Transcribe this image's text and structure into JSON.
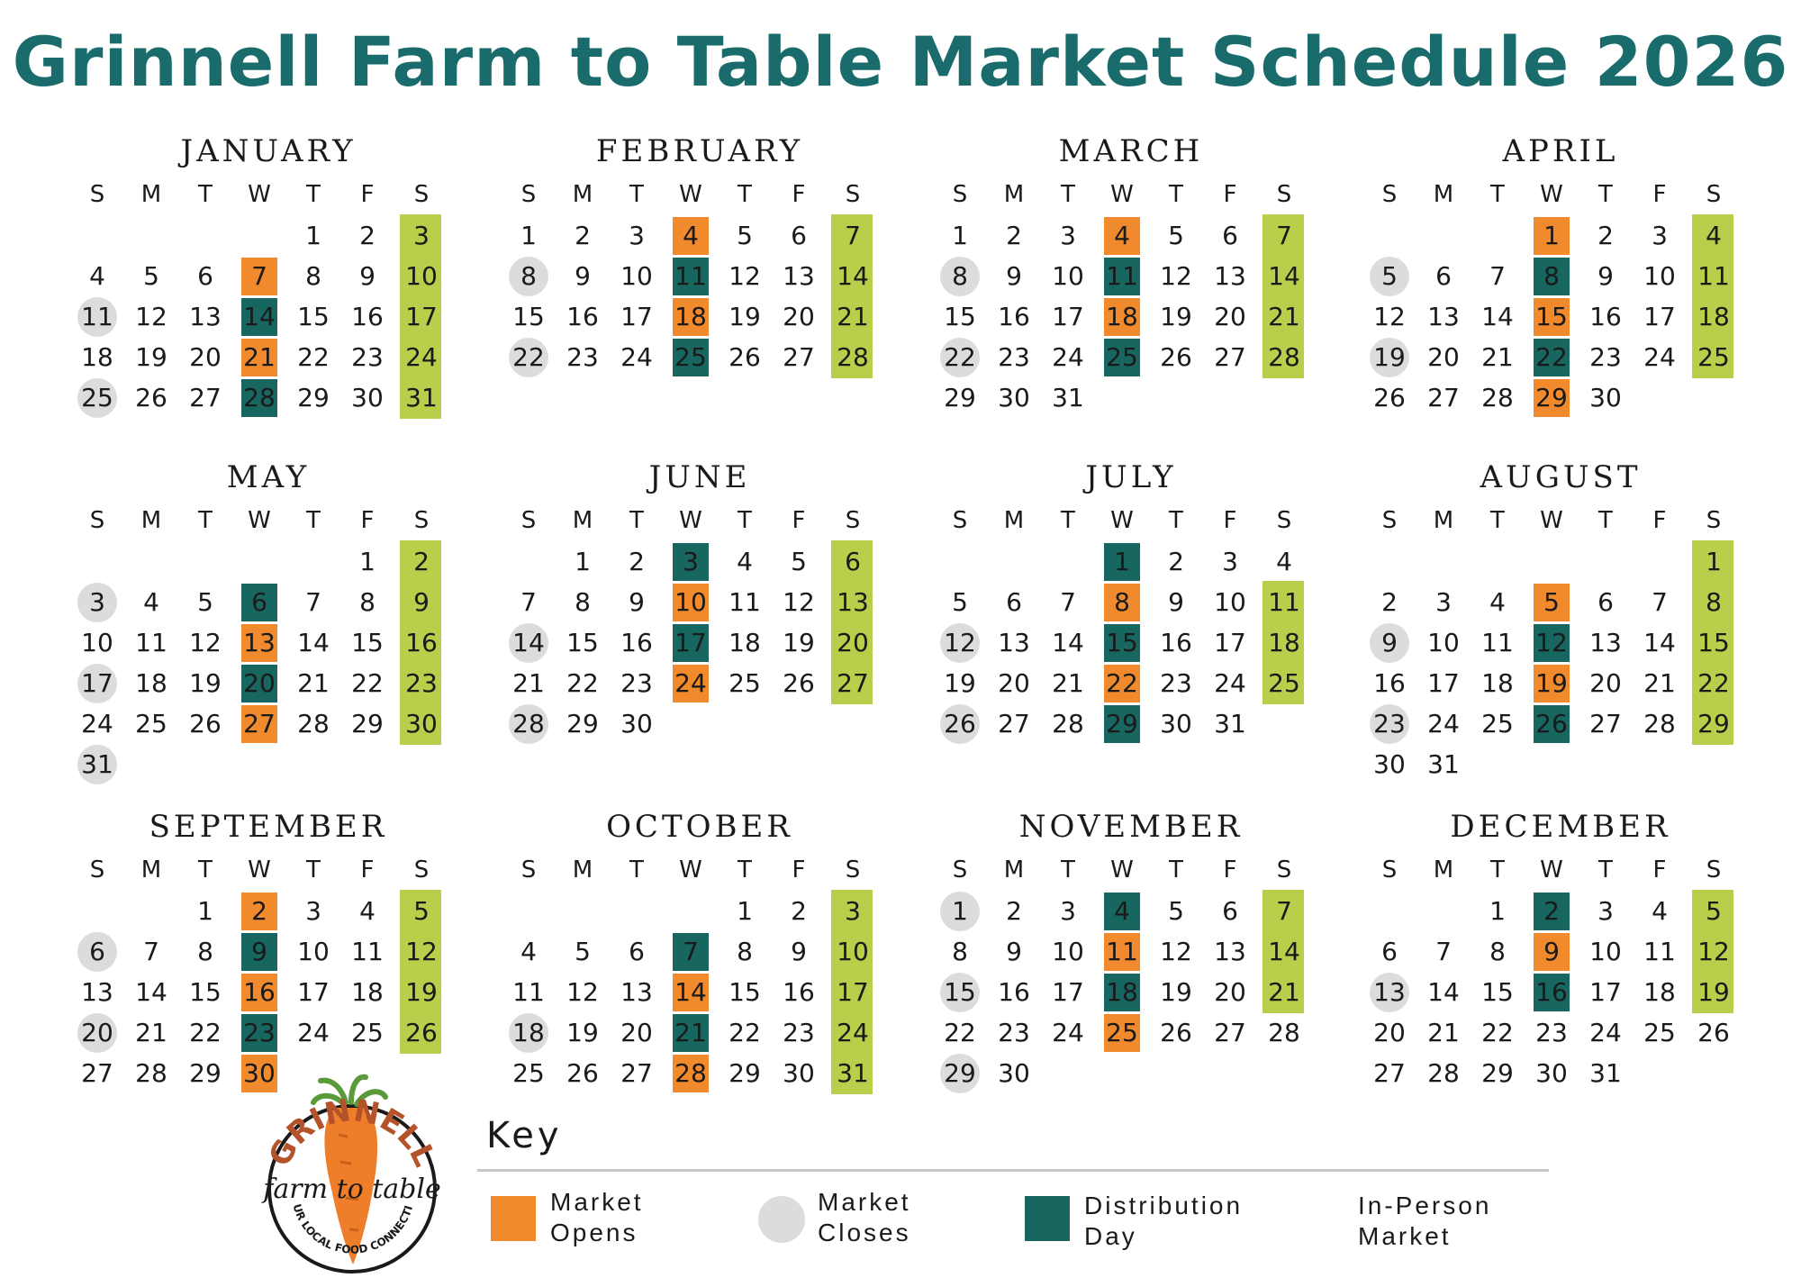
{
  "title": "Grinnell Farm to Table Market Schedule 2026",
  "weekday_headers": [
    "S",
    "M",
    "T",
    "W",
    "T",
    "F",
    "S"
  ],
  "colors": {
    "title": "#1a6b6b",
    "market_opens": "#f08a2c",
    "distribution_day": "#17665f",
    "market_closes": "#dcdcdc",
    "in_person_market": "#b7cf4a"
  },
  "months": [
    {
      "name": "JANUARY",
      "start": 4,
      "days": 31,
      "opens": [
        7,
        21
      ],
      "dist": [
        14,
        28
      ],
      "closes": [
        11,
        25
      ],
      "sat_from": 3,
      "sat_to": 31
    },
    {
      "name": "FEBRUARY",
      "start": 0,
      "days": 28,
      "opens": [
        4,
        18
      ],
      "dist": [
        11,
        25
      ],
      "closes": [
        8,
        22
      ],
      "sat_from": 7,
      "sat_to": 28
    },
    {
      "name": "MARCH",
      "start": 0,
      "days": 31,
      "opens": [
        4,
        18
      ],
      "dist": [
        11,
        25
      ],
      "closes": [
        8,
        22
      ],
      "sat_from": 7,
      "sat_to": 28
    },
    {
      "name": "APRIL",
      "start": 3,
      "days": 30,
      "opens": [
        1,
        15,
        29
      ],
      "dist": [
        8,
        22
      ],
      "closes": [
        5,
        19
      ],
      "sat_from": 4,
      "sat_to": 25
    },
    {
      "name": "MAY",
      "start": 5,
      "days": 31,
      "opens": [
        13,
        27
      ],
      "dist": [
        6,
        20
      ],
      "closes": [
        3,
        17,
        31
      ],
      "sat_from": 2,
      "sat_to": 30
    },
    {
      "name": "JUNE",
      "start": 1,
      "days": 30,
      "opens": [
        10,
        24
      ],
      "dist": [
        3,
        17
      ],
      "closes": [
        14,
        28
      ],
      "sat_from": 6,
      "sat_to": 27
    },
    {
      "name": "JULY",
      "start": 3,
      "days": 31,
      "opens": [
        8,
        22
      ],
      "dist": [
        1,
        15,
        29
      ],
      "closes": [
        12,
        26
      ],
      "sat_from": 11,
      "sat_to": 25
    },
    {
      "name": "AUGUST",
      "start": 6,
      "days": 31,
      "opens": [
        5,
        19
      ],
      "dist": [
        12,
        26
      ],
      "closes": [
        9,
        23
      ],
      "sat_from": 1,
      "sat_to": 29
    },
    {
      "name": "SEPTEMBER",
      "start": 2,
      "days": 30,
      "opens": [
        2,
        16,
        30
      ],
      "dist": [
        9,
        23
      ],
      "closes": [
        6,
        20
      ],
      "sat_from": 5,
      "sat_to": 26
    },
    {
      "name": "OCTOBER",
      "start": 4,
      "days": 31,
      "opens": [
        14,
        28
      ],
      "dist": [
        7,
        21
      ],
      "closes": [
        18
      ],
      "sat_from": 3,
      "sat_to": 31
    },
    {
      "name": "NOVEMBER",
      "start": 0,
      "days": 30,
      "opens": [
        11,
        25
      ],
      "dist": [
        4,
        18
      ],
      "closes": [
        1,
        15,
        29
      ],
      "sat_from": 7,
      "sat_to": 21
    },
    {
      "name": "DECEMBER",
      "start": 2,
      "days": 31,
      "opens": [
        9
      ],
      "dist": [
        2,
        16
      ],
      "closes": [
        13
      ],
      "sat_from": 5,
      "sat_to": 19
    }
  ],
  "key": {
    "title": "Key",
    "items": [
      {
        "label": "Market\nOpens",
        "swatch": "market_opens"
      },
      {
        "label": "Market\nCloses",
        "swatch": "market_closes"
      },
      {
        "label": "Distribution\nDay",
        "swatch": "distribution_day"
      },
      {
        "label": "In-Person\nMarket",
        "swatch": "in_person_market"
      }
    ]
  },
  "logo": {
    "top_text": "GRINNELL",
    "script_text": "farm to table",
    "bottom_text": "YOUR LOCAL FOOD CONNECTION",
    "icon": "carrot-icon"
  }
}
